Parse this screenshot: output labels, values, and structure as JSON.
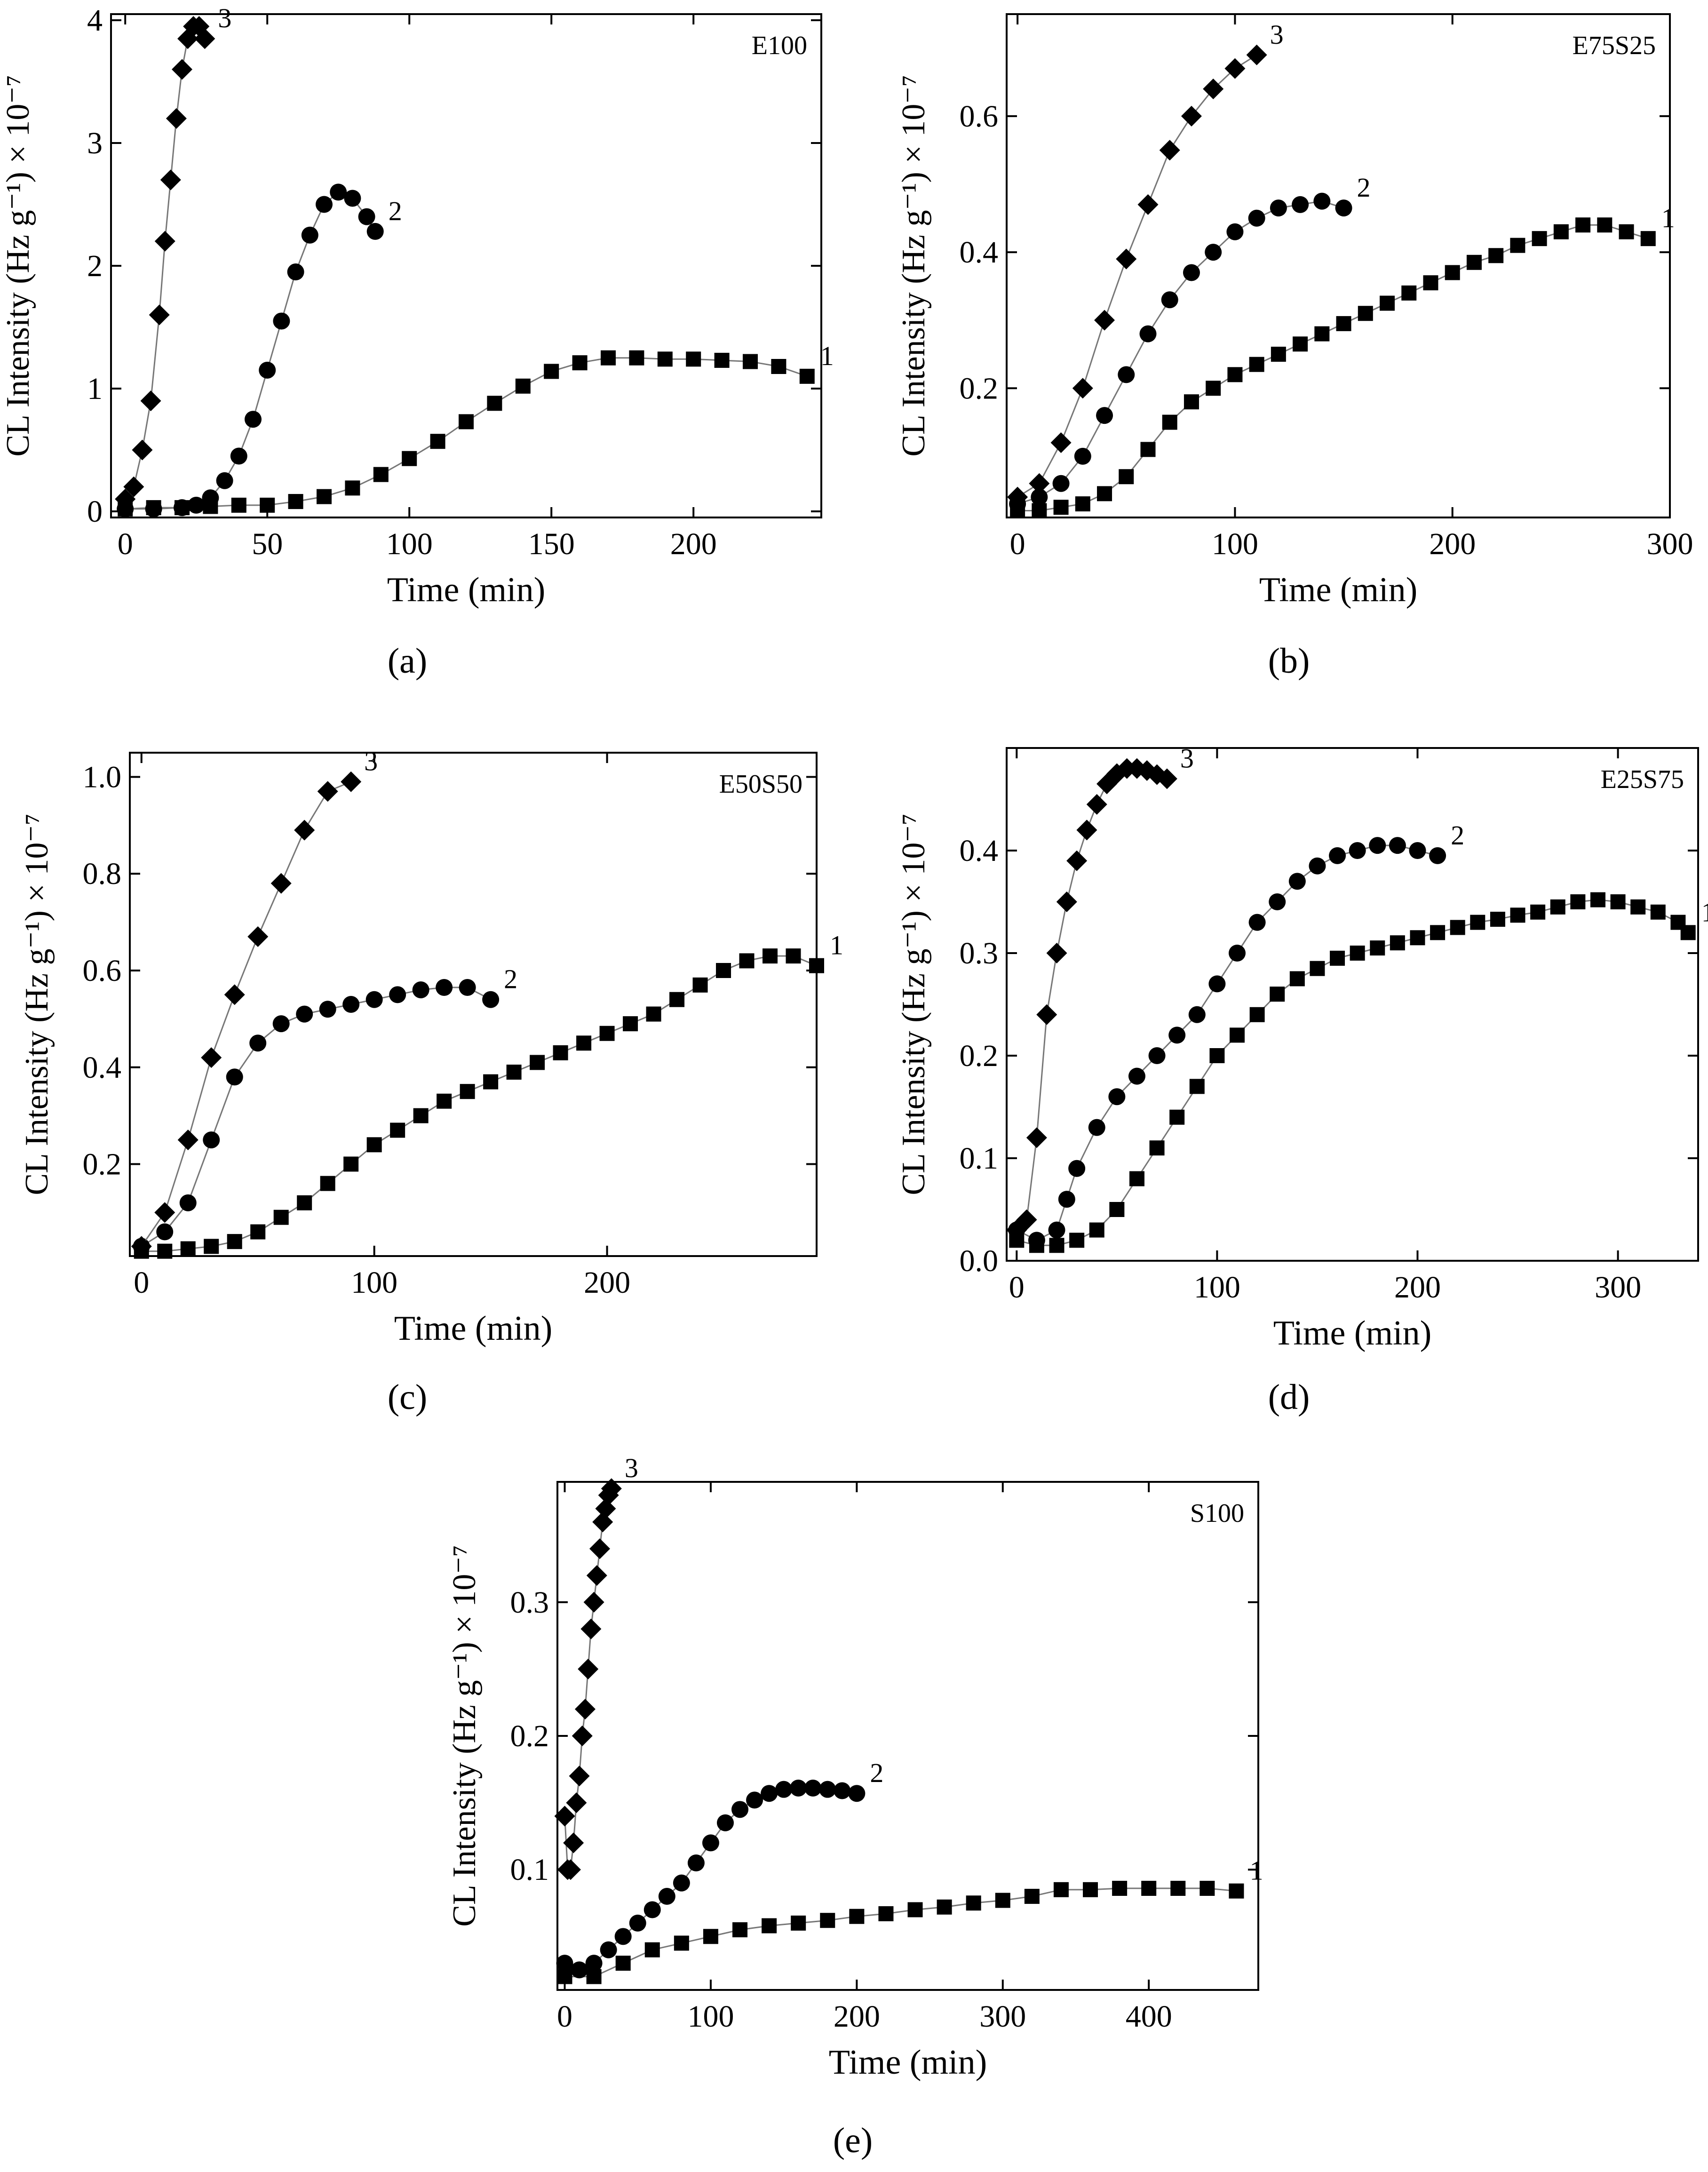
{
  "figure": {
    "y_axis_label": "CL Intensity (Hz g⁻¹) × 10⁻⁷",
    "x_axis_label": "Time (min)"
  },
  "chart_data": [
    {
      "type": "scatter",
      "panel_label": "(a)",
      "sample_label": "E100",
      "xlabel": "Time (min)",
      "ylabel": "CL Intensity (Hz g⁻¹) × 10⁻⁷",
      "xlim": [
        -5,
        245
      ],
      "ylim": [
        -0.05,
        4.05
      ],
      "xticks": [
        0,
        50,
        100,
        150,
        200
      ],
      "yticks": [
        0,
        1,
        2,
        3,
        4
      ],
      "series": [
        {
          "name": "1",
          "marker": "square",
          "x": [
            0,
            10,
            20,
            30,
            40,
            50,
            60,
            70,
            80,
            90,
            100,
            110,
            120,
            130,
            140,
            150,
            160,
            170,
            180,
            190,
            200,
            210,
            220,
            230,
            240
          ],
          "y": [
            0.02,
            0.03,
            0.03,
            0.04,
            0.05,
            0.05,
            0.08,
            0.12,
            0.19,
            0.3,
            0.43,
            0.57,
            0.73,
            0.88,
            1.02,
            1.14,
            1.21,
            1.25,
            1.25,
            1.24,
            1.24,
            1.23,
            1.22,
            1.18,
            1.1
          ]
        },
        {
          "name": "2",
          "marker": "circle",
          "x": [
            0,
            10,
            20,
            25,
            30,
            35,
            40,
            45,
            50,
            55,
            60,
            65,
            70,
            75,
            80,
            85,
            88
          ],
          "y": [
            0.02,
            0.02,
            0.03,
            0.05,
            0.11,
            0.25,
            0.45,
            0.75,
            1.15,
            1.55,
            1.95,
            2.25,
            2.5,
            2.6,
            2.55,
            2.4,
            2.28
          ]
        },
        {
          "name": "3",
          "marker": "diamond",
          "x": [
            0,
            3,
            6,
            9,
            12,
            14,
            16,
            18,
            20,
            22,
            24,
            26,
            28
          ],
          "y": [
            0.1,
            0.2,
            0.5,
            0.9,
            1.6,
            2.2,
            2.7,
            3.2,
            3.6,
            3.85,
            3.95,
            3.95,
            3.85
          ]
        }
      ]
    },
    {
      "type": "scatter",
      "panel_label": "(b)",
      "sample_label": "E75S25",
      "xlabel": "Time (min)",
      "ylabel": "CL Intensity (Hz g⁻¹) × 10⁻⁷",
      "xlim": [
        -5,
        300
      ],
      "ylim": [
        0.01,
        0.75
      ],
      "xticks": [
        0,
        100,
        200,
        300
      ],
      "yticks": [
        0.2,
        0.4,
        0.6
      ],
      "series": [
        {
          "name": "1",
          "marker": "square",
          "x": [
            0,
            10,
            20,
            30,
            40,
            50,
            60,
            70,
            80,
            90,
            100,
            110,
            120,
            130,
            140,
            150,
            160,
            170,
            180,
            190,
            200,
            210,
            220,
            230,
            240,
            250,
            260,
            270,
            280,
            290
          ],
          "y": [
            0.02,
            0.02,
            0.025,
            0.03,
            0.045,
            0.07,
            0.11,
            0.15,
            0.18,
            0.2,
            0.22,
            0.235,
            0.25,
            0.265,
            0.28,
            0.295,
            0.31,
            0.325,
            0.34,
            0.355,
            0.37,
            0.385,
            0.395,
            0.41,
            0.42,
            0.43,
            0.44,
            0.44,
            0.43,
            0.42
          ]
        },
        {
          "name": "2",
          "marker": "circle",
          "x": [
            0,
            10,
            20,
            30,
            40,
            50,
            60,
            70,
            80,
            90,
            100,
            110,
            120,
            130,
            140,
            150
          ],
          "y": [
            0.03,
            0.04,
            0.06,
            0.1,
            0.16,
            0.22,
            0.28,
            0.33,
            0.37,
            0.4,
            0.43,
            0.45,
            0.465,
            0.47,
            0.475,
            0.465
          ]
        },
        {
          "name": "3",
          "marker": "diamond",
          "x": [
            0,
            10,
            20,
            30,
            40,
            50,
            60,
            70,
            80,
            90,
            100,
            110
          ],
          "y": [
            0.04,
            0.06,
            0.12,
            0.2,
            0.3,
            0.39,
            0.47,
            0.55,
            0.6,
            0.64,
            0.67,
            0.69
          ]
        }
      ]
    },
    {
      "type": "scatter",
      "panel_label": "(c)",
      "sample_label": "E50S50",
      "xlabel": "Time (min)",
      "ylabel": "CL Intensity (Hz g⁻¹) × 10⁻⁷",
      "xlim": [
        -5,
        290
      ],
      "ylim": [
        0.01,
        1.05
      ],
      "xticks": [
        0,
        100,
        200
      ],
      "yticks": [
        0.2,
        0.4,
        0.6,
        0.8,
        1.0
      ],
      "series": [
        {
          "name": "1",
          "marker": "square",
          "x": [
            0,
            10,
            20,
            30,
            40,
            50,
            60,
            70,
            80,
            90,
            100,
            110,
            120,
            130,
            140,
            150,
            160,
            170,
            180,
            190,
            200,
            210,
            220,
            230,
            240,
            250,
            260,
            270,
            280,
            290
          ],
          "y": [
            0.02,
            0.02,
            0.025,
            0.03,
            0.04,
            0.06,
            0.09,
            0.12,
            0.16,
            0.2,
            0.24,
            0.27,
            0.3,
            0.33,
            0.35,
            0.37,
            0.39,
            0.41,
            0.43,
            0.45,
            0.47,
            0.49,
            0.51,
            0.54,
            0.57,
            0.6,
            0.62,
            0.63,
            0.63,
            0.61
          ]
        },
        {
          "name": "2",
          "marker": "circle",
          "x": [
            0,
            10,
            20,
            30,
            40,
            50,
            60,
            70,
            80,
            90,
            100,
            110,
            120,
            130,
            140,
            150
          ],
          "y": [
            0.03,
            0.06,
            0.12,
            0.25,
            0.38,
            0.45,
            0.49,
            0.51,
            0.52,
            0.53,
            0.54,
            0.55,
            0.56,
            0.565,
            0.565,
            0.54
          ]
        },
        {
          "name": "3",
          "marker": "diamond",
          "x": [
            0,
            10,
            20,
            30,
            40,
            50,
            60,
            70,
            80,
            90
          ],
          "y": [
            0.03,
            0.1,
            0.25,
            0.42,
            0.55,
            0.67,
            0.78,
            0.89,
            0.97,
            0.99
          ]
        }
      ]
    },
    {
      "type": "scatter",
      "panel_label": "(d)",
      "sample_label": "E25S75",
      "xlabel": "Time (min)",
      "ylabel": "CL Intensity (Hz g⁻¹) × 10⁻⁷",
      "xlim": [
        -5,
        340
      ],
      "ylim": [
        0.0,
        0.5
      ],
      "xticks": [
        0,
        100,
        200,
        300
      ],
      "yticks": [
        0.0,
        0.1,
        0.2,
        0.3,
        0.4
      ],
      "series": [
        {
          "name": "1",
          "marker": "square",
          "x": [
            0,
            10,
            20,
            30,
            40,
            50,
            60,
            70,
            80,
            90,
            100,
            110,
            120,
            130,
            140,
            150,
            160,
            170,
            180,
            190,
            200,
            210,
            220,
            230,
            240,
            250,
            260,
            270,
            280,
            290,
            300,
            310,
            320,
            330,
            335
          ],
          "y": [
            0.02,
            0.015,
            0.015,
            0.02,
            0.03,
            0.05,
            0.08,
            0.11,
            0.14,
            0.17,
            0.2,
            0.22,
            0.24,
            0.26,
            0.275,
            0.285,
            0.295,
            0.3,
            0.305,
            0.31,
            0.315,
            0.32,
            0.325,
            0.33,
            0.333,
            0.337,
            0.34,
            0.345,
            0.35,
            0.352,
            0.35,
            0.345,
            0.34,
            0.33,
            0.32
          ]
        },
        {
          "name": "2",
          "marker": "circle",
          "x": [
            0,
            10,
            20,
            25,
            30,
            40,
            50,
            60,
            70,
            80,
            90,
            100,
            110,
            120,
            130,
            140,
            150,
            160,
            170,
            180,
            190,
            200,
            210
          ],
          "y": [
            0.03,
            0.02,
            0.03,
            0.06,
            0.09,
            0.13,
            0.16,
            0.18,
            0.2,
            0.22,
            0.24,
            0.27,
            0.3,
            0.33,
            0.35,
            0.37,
            0.385,
            0.395,
            0.4,
            0.405,
            0.405,
            0.4,
            0.395
          ]
        },
        {
          "name": "3",
          "marker": "diamond",
          "x": [
            0,
            5,
            10,
            15,
            20,
            25,
            30,
            35,
            40,
            45,
            50,
            55,
            60,
            65,
            70,
            75
          ],
          "y": [
            0.03,
            0.04,
            0.12,
            0.24,
            0.3,
            0.35,
            0.39,
            0.42,
            0.445,
            0.465,
            0.475,
            0.48,
            0.48,
            0.478,
            0.474,
            0.47
          ]
        }
      ]
    },
    {
      "type": "scatter",
      "panel_label": "(e)",
      "sample_label": "S100",
      "xlabel": "Time (min)",
      "ylabel": "CL Intensity (Hz g⁻¹) × 10⁻⁷",
      "xlim": [
        -5,
        475
      ],
      "ylim": [
        0.01,
        0.39
      ],
      "xticks": [
        0,
        100,
        200,
        300,
        400
      ],
      "yticks": [
        0.1,
        0.2,
        0.3
      ],
      "series": [
        {
          "name": "1",
          "marker": "square",
          "x": [
            0,
            20,
            40,
            60,
            80,
            100,
            120,
            140,
            160,
            180,
            200,
            220,
            240,
            260,
            280,
            300,
            320,
            340,
            360,
            380,
            400,
            420,
            440,
            460
          ],
          "y": [
            0.02,
            0.02,
            0.03,
            0.04,
            0.045,
            0.05,
            0.055,
            0.058,
            0.06,
            0.062,
            0.065,
            0.067,
            0.07,
            0.072,
            0.075,
            0.077,
            0.08,
            0.085,
            0.085,
            0.086,
            0.086,
            0.086,
            0.086,
            0.084
          ]
        },
        {
          "name": "2",
          "marker": "circle",
          "x": [
            0,
            10,
            20,
            30,
            40,
            50,
            60,
            70,
            80,
            90,
            100,
            110,
            120,
            130,
            140,
            150,
            160,
            170,
            180,
            190,
            200
          ],
          "y": [
            0.03,
            0.025,
            0.03,
            0.04,
            0.05,
            0.06,
            0.07,
            0.08,
            0.09,
            0.105,
            0.12,
            0.135,
            0.145,
            0.152,
            0.157,
            0.16,
            0.161,
            0.161,
            0.16,
            0.159,
            0.157
          ]
        },
        {
          "name": "3",
          "marker": "diamond",
          "x": [
            0,
            2,
            4,
            6,
            8,
            10,
            12,
            14,
            16,
            18,
            20,
            22,
            24,
            26,
            28,
            30,
            32
          ],
          "y": [
            0.14,
            0.1,
            0.1,
            0.12,
            0.15,
            0.17,
            0.2,
            0.22,
            0.25,
            0.28,
            0.3,
            0.32,
            0.34,
            0.36,
            0.37,
            0.38,
            0.385
          ]
        }
      ]
    }
  ]
}
